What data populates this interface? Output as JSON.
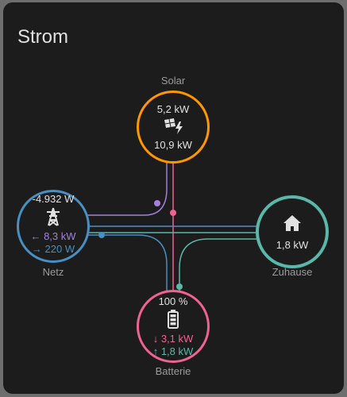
{
  "card": {
    "title": "Strom"
  },
  "colors": {
    "solar": "#ff9800",
    "grid": "#488fc2",
    "grid_return": "#a280db",
    "battery": "#f06292",
    "home": "#5bb7a8",
    "text": "#e1e1e1",
    "muted": "#9b9b9b"
  },
  "solar": {
    "label": "Solar",
    "value_top": "5,2 kW",
    "value_bottom": "10,9 kW",
    "icon": "solar-power-icon"
  },
  "grid": {
    "label": "Netz",
    "value_total": "-4.932 W",
    "return_value": "← 8,3 kW",
    "consumption_value": "→ 220 W",
    "icon": "transmission-tower-icon"
  },
  "home": {
    "label": "Zuhause",
    "value": "1,8 kW",
    "icon": "home-icon"
  },
  "battery": {
    "label": "Batterie",
    "state_of_charge": "100 %",
    "discharge_value": "↓ 3,1 kW",
    "charge_value": "↑ 1,8 kW",
    "icon": "battery-icon"
  }
}
